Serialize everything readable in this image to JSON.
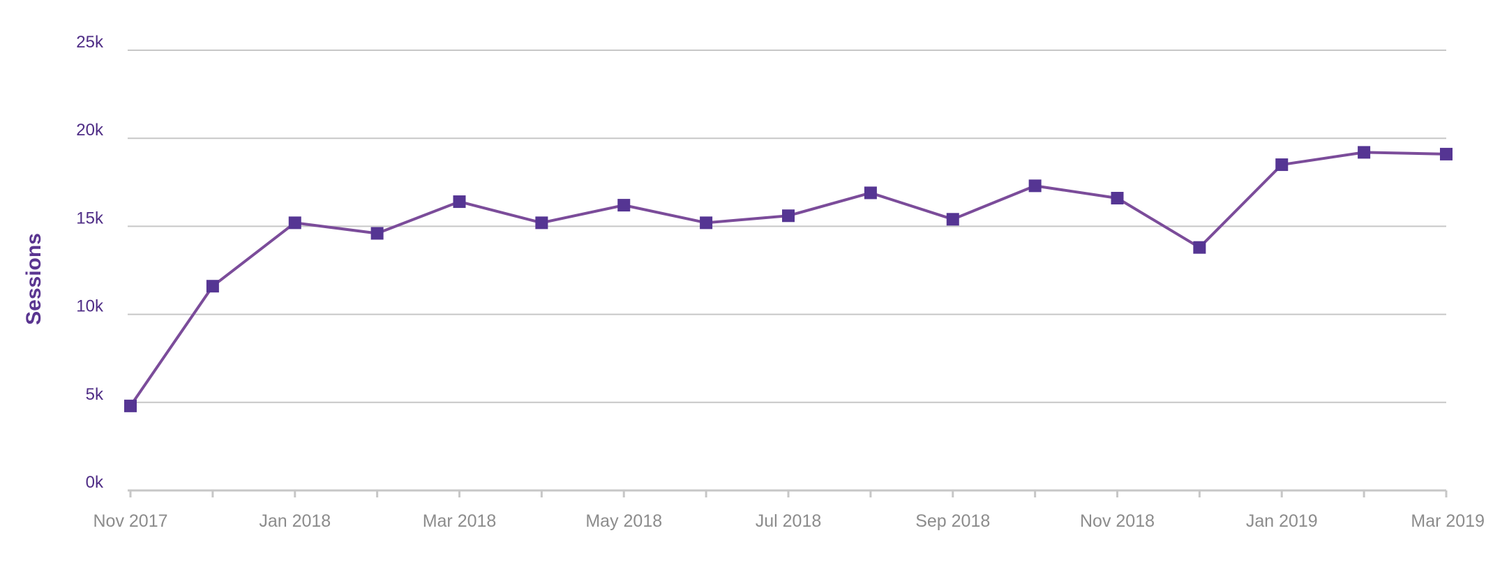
{
  "colors": {
    "line": "#7b4c9a",
    "marker": "#553593",
    "ytick": "#4f2d86",
    "ylabel": "#5a3590",
    "xtick": "#8c8c8c",
    "grid": "#c7c7c7",
    "axis": "#c7c7c7"
  },
  "chart_data": {
    "type": "line",
    "title": "",
    "xlabel": "",
    "ylabel": "Sessions",
    "ylim": [
      0,
      25000
    ],
    "yticks": [
      {
        "value": 0,
        "label": "0k"
      },
      {
        "value": 5000,
        "label": "5k"
      },
      {
        "value": 10000,
        "label": "10k"
      },
      {
        "value": 15000,
        "label": "15k"
      },
      {
        "value": 20000,
        "label": "20k"
      },
      {
        "value": 25000,
        "label": "25k"
      }
    ],
    "x": [
      "Nov 2017",
      "Dec 2017",
      "Jan 2018",
      "Feb 2018",
      "Mar 2018",
      "Apr 2018",
      "May 2018",
      "Jun 2018",
      "Jul 2018",
      "Aug 2018",
      "Sep 2018",
      "Oct 2018",
      "Nov 2018",
      "Dec 2018",
      "Jan 2019",
      "Feb 2019",
      "Mar 2019"
    ],
    "xtick_labels": [
      "Nov 2017",
      "",
      "Jan 2018",
      "",
      "Mar 2018",
      "",
      "May 2018",
      "",
      "Jul 2018",
      "",
      "Sep 2018",
      "",
      "Nov 2018",
      "",
      "Jan 2019",
      "",
      "Mar 2019"
    ],
    "grid": true,
    "series": [
      {
        "name": "Sessions",
        "values": [
          4800,
          11600,
          15200,
          14600,
          16400,
          15200,
          16200,
          15200,
          15600,
          16900,
          15400,
          17300,
          16600,
          13800,
          18500,
          19200,
          19100
        ]
      }
    ]
  }
}
